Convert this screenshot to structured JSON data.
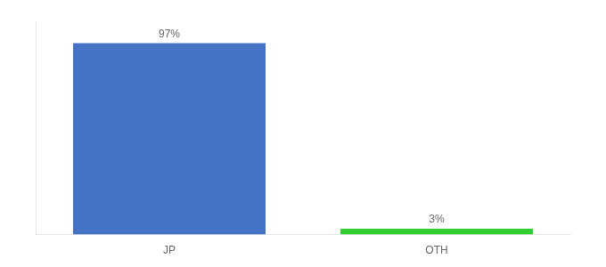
{
  "chart_data": {
    "type": "bar",
    "categories": [
      "JP",
      "OTH"
    ],
    "values": [
      97,
      3
    ],
    "value_labels": [
      "97%",
      "3%"
    ],
    "data_labels": true,
    "colors": [
      "#4472c4",
      "#32cd32"
    ],
    "ylim": [
      0,
      108
    ],
    "tick_labels": "x",
    "grid": false
  }
}
